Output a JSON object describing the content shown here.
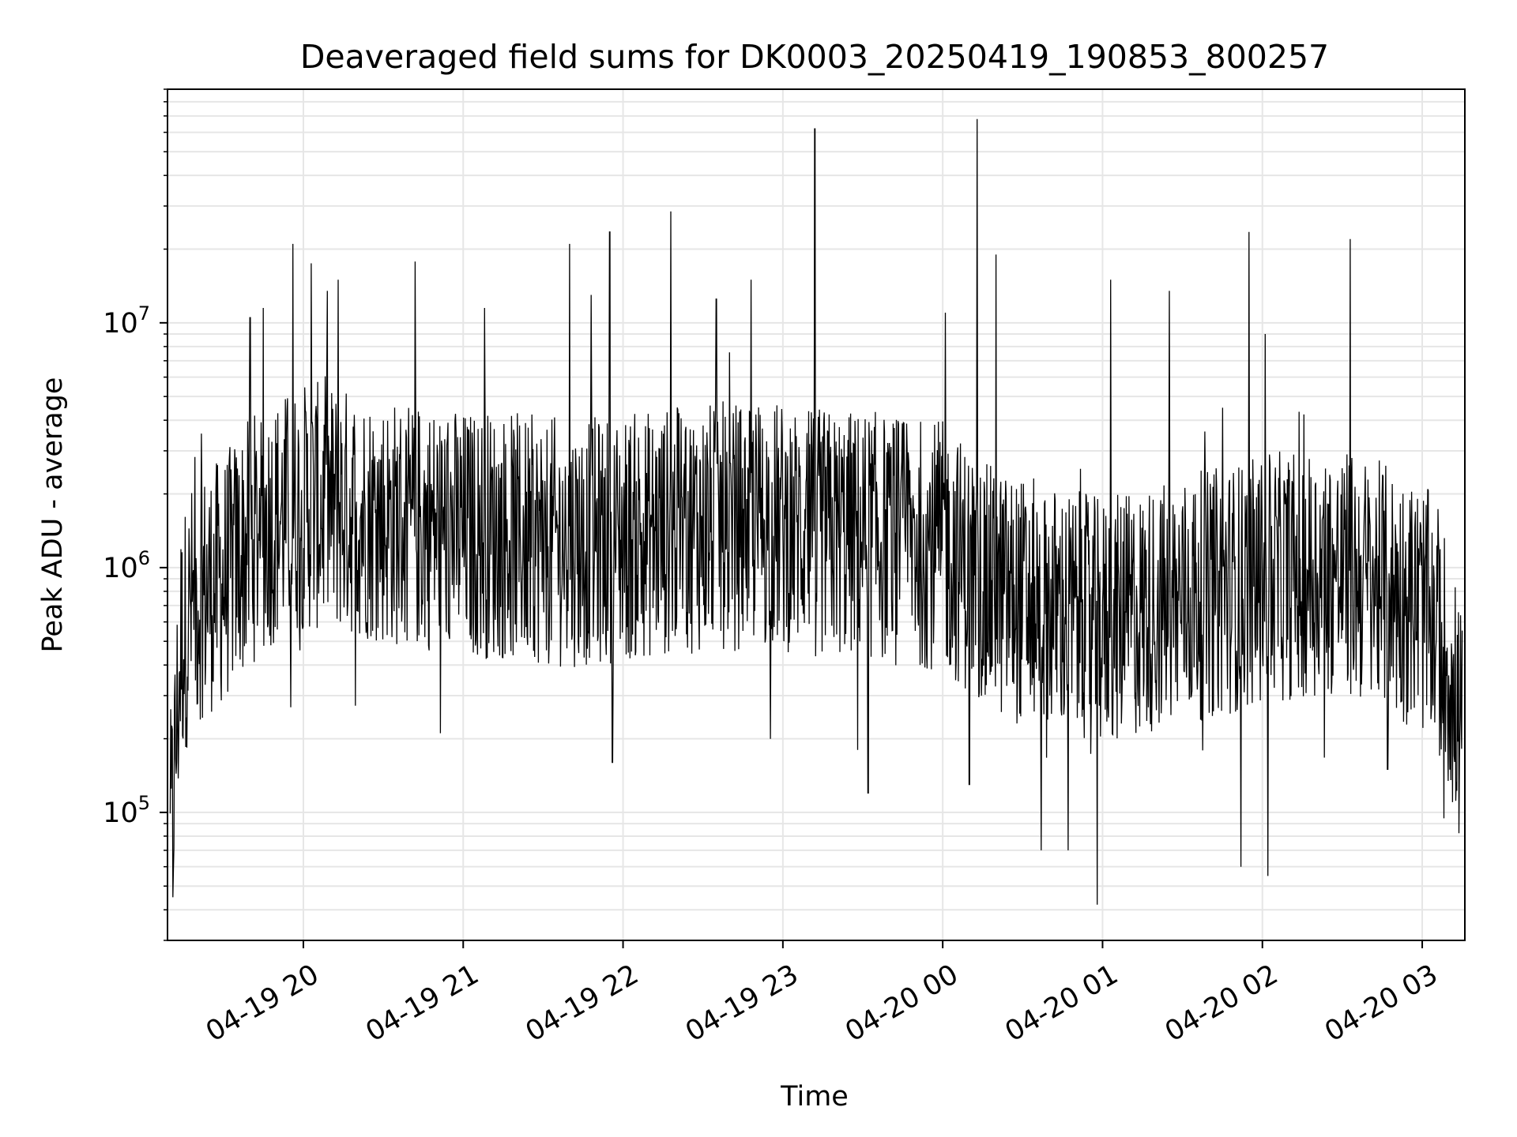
{
  "chart_data": {
    "type": "line",
    "title": "Deaveraged field sums for DK0003_20250419_190853_800257",
    "xlabel": "Time",
    "ylabel": "Peak ADU - average",
    "yscale": "log",
    "ylim": [
      30000,
      90000000
    ],
    "xlim": [
      "2025-04-19 19:09",
      "2025-04-20 03:16"
    ],
    "grid": true,
    "line_color": "#000000",
    "grid_color": "#e6e6e6",
    "x_ticks": [
      {
        "value": "2025-04-19 20:00",
        "label": "04-19 20"
      },
      {
        "value": "2025-04-19 21:00",
        "label": "04-19 21"
      },
      {
        "value": "2025-04-19 22:00",
        "label": "04-19 22"
      },
      {
        "value": "2025-04-19 23:00",
        "label": "04-19 23"
      },
      {
        "value": "2025-04-20 00:00",
        "label": "04-20 00"
      },
      {
        "value": "2025-04-20 01:00",
        "label": "04-20 01"
      },
      {
        "value": "2025-04-20 02:00",
        "label": "04-20 02"
      },
      {
        "value": "2025-04-20 03:00",
        "label": "04-20 03"
      }
    ],
    "y_ticks": [
      {
        "value": 100000,
        "base": "10",
        "exp": "5"
      },
      {
        "value": 1000000,
        "base": "10",
        "exp": "6"
      },
      {
        "value": 10000000,
        "base": "10",
        "exp": "7"
      }
    ],
    "series": [
      {
        "x": [
          "2025-04-19 19:10",
          "2025-04-19 19:12",
          "2025-04-19 19:14",
          "2025-04-19 19:18",
          "2025-04-19 19:22",
          "2025-04-19 19:30",
          "2025-04-19 19:35",
          "2025-04-19 19:40",
          "2025-04-19 19:45",
          "2025-04-19 19:50",
          "2025-04-19 19:55",
          "2025-04-19 20:00",
          "2025-04-19 20:10",
          "2025-04-19 20:20",
          "2025-04-19 20:30",
          "2025-04-19 20:40",
          "2025-04-19 20:50",
          "2025-04-19 21:00",
          "2025-04-19 21:10",
          "2025-04-19 21:20",
          "2025-04-19 21:30",
          "2025-04-19 21:40",
          "2025-04-19 21:50",
          "2025-04-19 22:00",
          "2025-04-19 22:10",
          "2025-04-19 22:20",
          "2025-04-19 22:30",
          "2025-04-19 22:40",
          "2025-04-19 22:50",
          "2025-04-19 23:00",
          "2025-04-19 23:10",
          "2025-04-19 23:20",
          "2025-04-19 23:30",
          "2025-04-19 23:40",
          "2025-04-19 23:50",
          "2025-04-20 00:00",
          "2025-04-20 00:10",
          "2025-04-20 00:20",
          "2025-04-20 00:30",
          "2025-04-20 00:40",
          "2025-04-20 00:50",
          "2025-04-20 01:00",
          "2025-04-20 01:10",
          "2025-04-20 01:20",
          "2025-04-20 01:30",
          "2025-04-20 01:40",
          "2025-04-20 01:50",
          "2025-04-20 02:00",
          "2025-04-20 02:10",
          "2025-04-20 02:20",
          "2025-04-20 02:30",
          "2025-04-20 02:40",
          "2025-04-20 02:50",
          "2025-04-20 03:00",
          "2025-04-20 03:05",
          "2025-04-20 03:10",
          "2025-04-20 03:15"
        ],
        "baseline": [
          70000,
          180000,
          500000,
          700000,
          800000,
          900000,
          1100000,
          1300000,
          1500000,
          1600000,
          1700000,
          1800000,
          1800000,
          1700000,
          1600000,
          1500000,
          1500000,
          1400000,
          1400000,
          1350000,
          1300000,
          1300000,
          1300000,
          1350000,
          1400000,
          1450000,
          1500000,
          1500000,
          1550000,
          1500000,
          1450000,
          1400000,
          1400000,
          1350000,
          1300000,
          1250000,
          1000000,
          800000,
          750000,
          700000,
          650000,
          600000,
          650000,
          700000,
          750000,
          800000,
          850000,
          900000,
          950000,
          1000000,
          950000,
          900000,
          800000,
          700000,
          600000,
          400000,
          200000
        ],
        "spikes": [
          {
            "x": "2025-04-19 19:11",
            "y": 45000
          },
          {
            "x": "2025-04-19 19:40",
            "y": 10500000
          },
          {
            "x": "2025-04-19 19:45",
            "y": 11500000
          },
          {
            "x": "2025-04-19 19:56",
            "y": 21000000
          },
          {
            "x": "2025-04-19 20:03",
            "y": 17500000
          },
          {
            "x": "2025-04-19 20:09",
            "y": 13500000
          },
          {
            "x": "2025-04-19 20:13",
            "y": 15000000
          },
          {
            "x": "2025-04-19 20:42",
            "y": 17800000
          },
          {
            "x": "2025-04-19 21:08",
            "y": 11500000
          },
          {
            "x": "2025-04-19 21:40",
            "y": 21000000
          },
          {
            "x": "2025-04-19 21:48",
            "y": 13000000
          },
          {
            "x": "2025-04-19 21:55",
            "y": 23500000
          },
          {
            "x": "2025-04-19 21:56",
            "y": 160000
          },
          {
            "x": "2025-04-19 22:18",
            "y": 28500000
          },
          {
            "x": "2025-04-19 22:35",
            "y": 12500000
          },
          {
            "x": "2025-04-19 22:48",
            "y": 15000000
          },
          {
            "x": "2025-04-19 23:12",
            "y": 62000000
          },
          {
            "x": "2025-04-19 23:28",
            "y": 180000
          },
          {
            "x": "2025-04-19 23:32",
            "y": 120000
          },
          {
            "x": "2025-04-20 00:01",
            "y": 11000000
          },
          {
            "x": "2025-04-20 00:10",
            "y": 130000
          },
          {
            "x": "2025-04-20 00:13",
            "y": 68000000
          },
          {
            "x": "2025-04-20 00:20",
            "y": 19000000
          },
          {
            "x": "2025-04-20 00:37",
            "y": 70000
          },
          {
            "x": "2025-04-20 00:47",
            "y": 70000
          },
          {
            "x": "2025-04-20 00:58",
            "y": 42000
          },
          {
            "x": "2025-04-20 01:03",
            "y": 15000000
          },
          {
            "x": "2025-04-20 01:25",
            "y": 13500000
          },
          {
            "x": "2025-04-20 01:45",
            "y": 4500000
          },
          {
            "x": "2025-04-20 01:52",
            "y": 60000
          },
          {
            "x": "2025-04-20 01:55",
            "y": 23500000
          },
          {
            "x": "2025-04-20 02:01",
            "y": 9000000
          },
          {
            "x": "2025-04-20 02:02",
            "y": 55000
          },
          {
            "x": "2025-04-20 02:33",
            "y": 22000000
          },
          {
            "x": "2025-04-20 02:47",
            "y": 150000
          },
          {
            "x": "2025-04-20 03:12",
            "y": 170000
          }
        ],
        "noise": {
          "low": 0.3,
          "high": 3.2
        }
      }
    ]
  }
}
